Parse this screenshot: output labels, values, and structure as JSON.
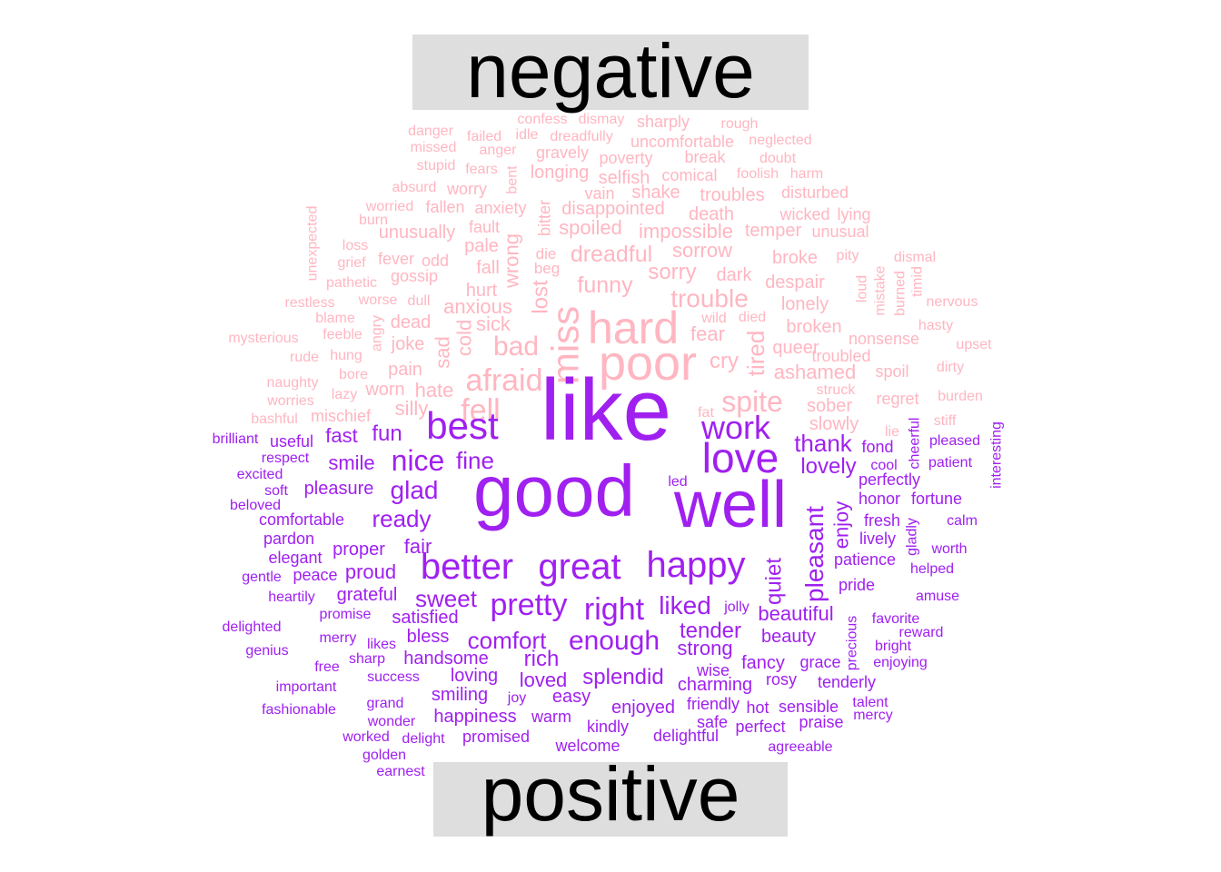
{
  "chart_data": {
    "type": "wordcloud",
    "groups": [
      {
        "name": "negative",
        "color": "#ffb6c1",
        "words": [
          "poor",
          "hard",
          "miss",
          "afraid",
          "bad",
          "fell",
          "spite",
          "trouble",
          "tired",
          "sorry",
          "dreadful",
          "funny",
          "sorrow",
          "impossible",
          "ashamed",
          "fear",
          "cry",
          "lost",
          "wrong",
          "anxious",
          "sick",
          "cold",
          "sad",
          "hate",
          "silly",
          "pain",
          "joke",
          "worn",
          "dead",
          "hurt",
          "fall",
          "pale",
          "die",
          "beg",
          "bitter",
          "spoiled",
          "disappointed",
          "death",
          "temper",
          "broke",
          "despair",
          "lonely",
          "broken",
          "queer",
          "troubled",
          "sober",
          "slowly",
          "struck",
          "fat",
          "dark",
          "wild",
          "died",
          "danger",
          "missed",
          "stupid",
          "absurd",
          "worried",
          "burn",
          "loss",
          "grief",
          "pathetic",
          "restless",
          "blame",
          "mysterious",
          "rude",
          "naughty",
          "worries",
          "bashful",
          "mischief",
          "lazy",
          "bore",
          "hung",
          "feeble",
          "angry",
          "worse",
          "dull",
          "gossip",
          "fever",
          "odd",
          "unusually",
          "fallen",
          "anxiety",
          "fault",
          "worry",
          "fears",
          "anger",
          "failed",
          "idle",
          "confess",
          "dismay",
          "dreadfully",
          "gravely",
          "longing",
          "poverty",
          "selfish",
          "vain",
          "shake",
          "comical",
          "sharply",
          "uncomfortable",
          "break",
          "troubles",
          "rough",
          "neglected",
          "doubt",
          "foolish",
          "harm",
          "disturbed",
          "wicked",
          "lying",
          "unusual",
          "pity",
          "dismal",
          "loud",
          "mistake",
          "burned",
          "timid",
          "nervous",
          "hasty",
          "upset",
          "dirty",
          "burden",
          "stiff",
          "regret",
          "spoil",
          "nonsense",
          "lie",
          "unexpected",
          "bent"
        ]
      },
      {
        "name": "positive",
        "color": "#a020f0",
        "words": [
          "like",
          "good",
          "well",
          "love",
          "best",
          "work",
          "great",
          "happy",
          "better",
          "pretty",
          "right",
          "nice",
          "glad",
          "enough",
          "pleasant",
          "quiet",
          "liked",
          "thank",
          "lovely",
          "fine",
          "fun",
          "fast",
          "smile",
          "ready",
          "fair",
          "sweet",
          "comfort",
          "rich",
          "splendid",
          "tender",
          "strong",
          "beautiful",
          "beauty",
          "fancy",
          "enjoy",
          "pleasure",
          "proper",
          "proud",
          "grateful",
          "satisfied",
          "bless",
          "handsome",
          "loving",
          "loved",
          "smiling",
          "easy",
          "charming",
          "enjoyed",
          "friendly",
          "happiness",
          "warm",
          "kindly",
          "delightful",
          "welcome",
          "perfect",
          "praise",
          "agreeable",
          "hot",
          "sensible",
          "safe",
          "promised",
          "delight",
          "worked",
          "golden",
          "earnest",
          "wonder",
          "grand",
          "joy",
          "success",
          "free",
          "sharp",
          "likes",
          "merry",
          "promise",
          "comfortable",
          "pardon",
          "elegant",
          "peace",
          "gentle",
          "heartily",
          "delighted",
          "genius",
          "important",
          "fashionable",
          "beloved",
          "soft",
          "excited",
          "respect",
          "useful",
          "brilliant",
          "led",
          "fond",
          "cool",
          "perfectly",
          "honor",
          "fortune",
          "fresh",
          "lively",
          "patience",
          "pride",
          "favorite",
          "bright",
          "enjoying",
          "tenderly",
          "talent",
          "mercy",
          "grace",
          "rosy",
          "wise",
          "jolly",
          "amuse",
          "reward",
          "helped",
          "worth",
          "calm",
          "patient",
          "pleased",
          "cheerful",
          "gladly",
          "precious",
          "interesting"
        ]
      }
    ]
  }
}
